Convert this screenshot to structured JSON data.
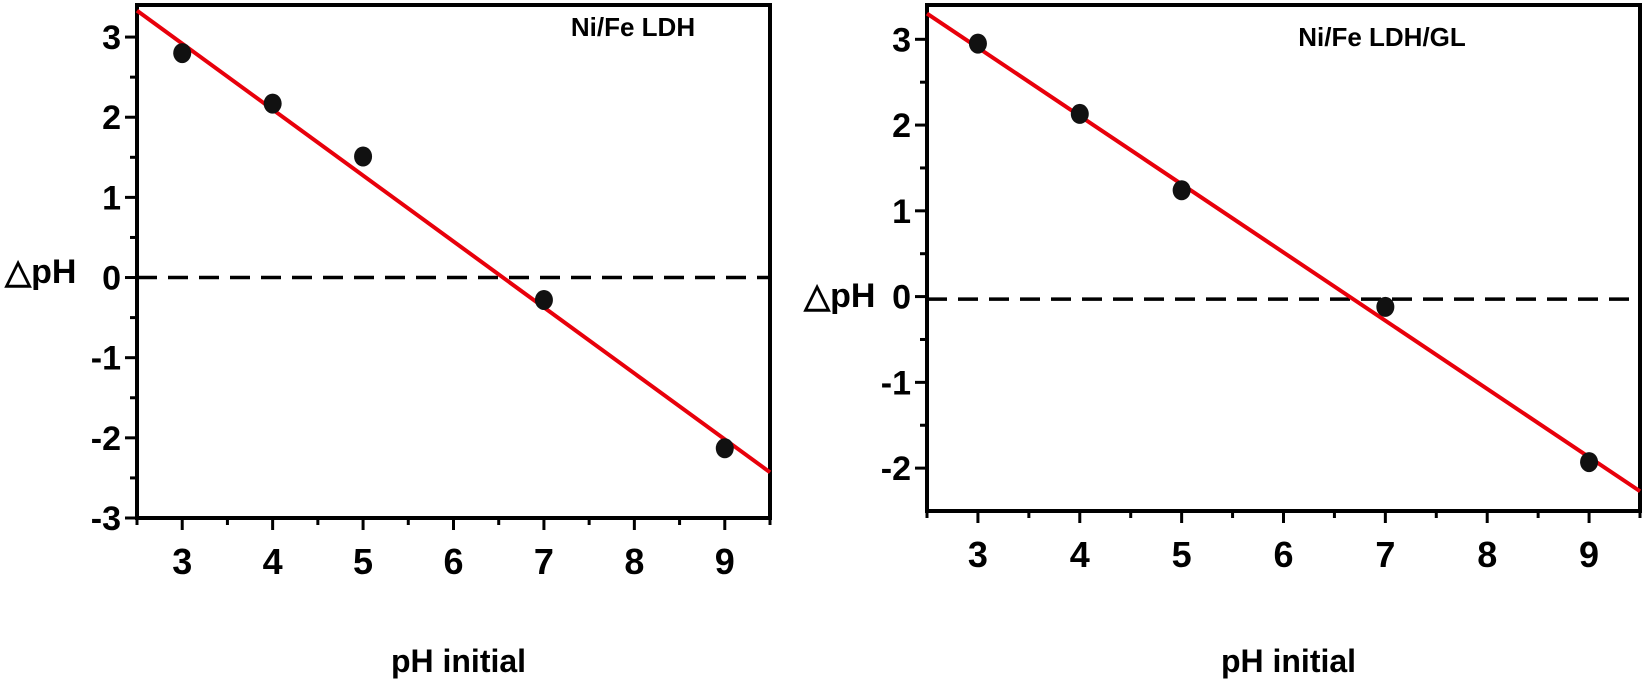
{
  "chart_data": [
    {
      "type": "scatter",
      "title": "Ni/Fe LDH",
      "xlabel": "pH initial",
      "ylabel": "△pH",
      "xlim": [
        2.5,
        9.5
      ],
      "ylim": [
        -3,
        3.4
      ],
      "xticks": [
        "3",
        "4",
        "5",
        "6",
        "7",
        "8",
        "9"
      ],
      "yticks": [
        "3",
        "2",
        "1",
        "0",
        "-1",
        "-2",
        "-3"
      ],
      "points": {
        "x": [
          3,
          4,
          5,
          7,
          9
        ],
        "y": [
          2.8,
          2.17,
          1.51,
          -0.28,
          -2.13
        ]
      },
      "fit_line": {
        "x": [
          2.5,
          9.5
        ],
        "y": [
          3.33,
          -2.43
        ],
        "color": "#e8000b"
      },
      "reference_line": {
        "y": 0,
        "style": "dashed",
        "color": "#000000"
      },
      "grid": false
    },
    {
      "type": "scatter",
      "title": "Ni/Fe LDH/GL",
      "xlabel": "pH initial",
      "ylabel": "△pH",
      "xlim": [
        2.5,
        9.5
      ],
      "ylim": [
        -2.5,
        3.4
      ],
      "xticks": [
        "3",
        "4",
        "5",
        "6",
        "7",
        "8",
        "9"
      ],
      "yticks": [
        "3",
        "2",
        "1",
        "0",
        "-1",
        "-2"
      ],
      "points": {
        "x": [
          3,
          4,
          5,
          7,
          9
        ],
        "y": [
          2.95,
          2.13,
          1.24,
          -0.12,
          -1.93
        ]
      },
      "fit_line": {
        "x": [
          2.5,
          9.5
        ],
        "y": [
          3.3,
          -2.27
        ],
        "color": "#e8000b"
      },
      "reference_line": {
        "y": -0.03,
        "style": "dashed",
        "color": "#000000"
      },
      "grid": false
    }
  ]
}
